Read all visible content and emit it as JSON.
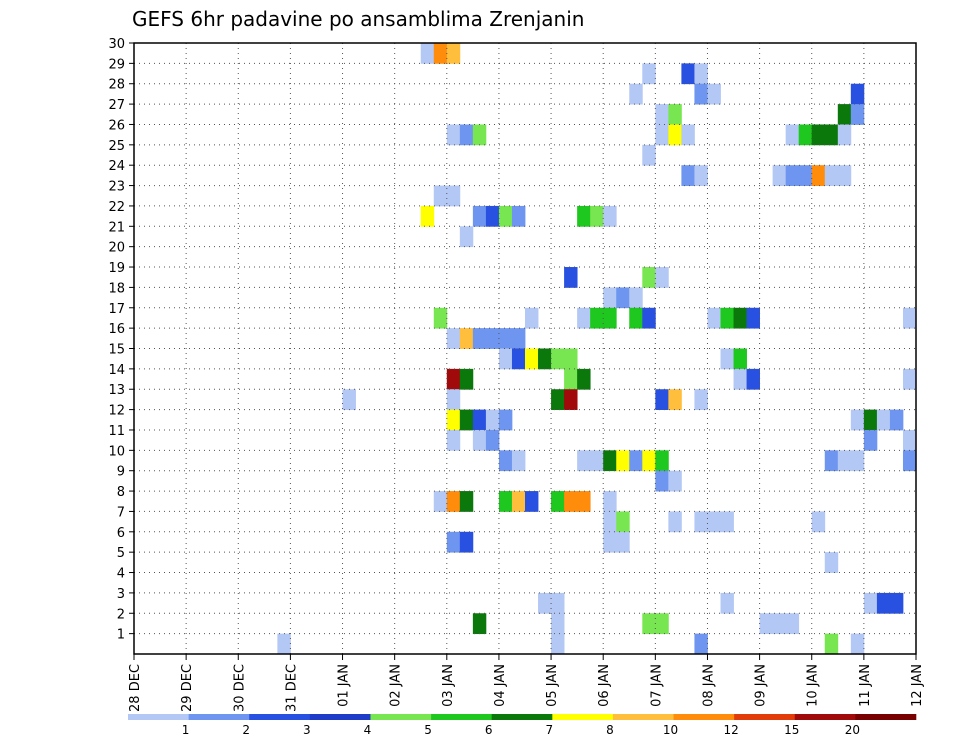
{
  "chart_data": {
    "type": "heatmap",
    "title": "GEFS 6hr padavine po ansamblima Zrenjanin",
    "xlabel": "",
    "ylabel": "",
    "x_ticks": [
      "28 DEC",
      "29 DEC",
      "30 DEC",
      "31 DEC",
      "01 JAN",
      "02 JAN",
      "03 JAN",
      "04 JAN",
      "05 JAN",
      "06 JAN",
      "07 JAN",
      "08 JAN",
      "09 JAN",
      "10 JAN",
      "11 JAN",
      "12 JAN"
    ],
    "y_ticks": [
      "1",
      "2",
      "3",
      "4",
      "5",
      "6",
      "7",
      "8",
      "9",
      "10",
      "11",
      "12",
      "13",
      "14",
      "15",
      "16",
      "17",
      "18",
      "19",
      "20",
      "21",
      "22",
      "23",
      "24",
      "25",
      "26",
      "27",
      "28",
      "29",
      "30"
    ],
    "ylim": [
      0,
      30
    ],
    "x_range_days": [
      0,
      15
    ],
    "time_step_hours": 6,
    "grid": "dotted",
    "legend_position": "bottom",
    "colorbar": {
      "levels": [
        "1",
        "2",
        "3",
        "4",
        "5",
        "6",
        "7",
        "8",
        "10",
        "12",
        "15",
        "20"
      ],
      "colors": [
        "#b4c8f5",
        "#6e96f0",
        "#2850e1",
        "#1e3cc8",
        "#78e650",
        "#1ec81e",
        "#0a780a",
        "#ffff00",
        "#ffbe3c",
        "#ff8c0a",
        "#e13c0a",
        "#a00a0a",
        "#780000"
      ]
    },
    "cells": [
      {
        "y": 30,
        "x": "2026-01-02T12",
        "v": 1
      },
      {
        "y": 30,
        "x": "2026-01-02T18",
        "v": 12
      },
      {
        "y": 30,
        "x": "2026-01-03T00",
        "v": 10
      },
      {
        "y": 29,
        "x": "2026-01-06T18",
        "v": 1
      },
      {
        "y": 29,
        "x": "2026-01-07T12",
        "v": 3
      },
      {
        "y": 29,
        "x": "2026-01-07T18",
        "v": 1
      },
      {
        "y": 28,
        "x": "2026-01-06T12",
        "v": 1
      },
      {
        "y": 28,
        "x": "2026-01-07T18",
        "v": 2
      },
      {
        "y": 28,
        "x": "2026-01-08T00",
        "v": 1
      },
      {
        "y": 28,
        "x": "2026-01-10T18",
        "v": 3
      },
      {
        "y": 27,
        "x": "2026-01-07T00",
        "v": 1
      },
      {
        "y": 27,
        "x": "2026-01-07T06",
        "v": 5
      },
      {
        "y": 27,
        "x": "2026-01-10T12",
        "v": 7
      },
      {
        "y": 27,
        "x": "2026-01-10T18",
        "v": 2
      },
      {
        "y": 26,
        "x": "2026-01-03T00",
        "v": 1
      },
      {
        "y": 26,
        "x": "2026-01-03T06",
        "v": 2
      },
      {
        "y": 26,
        "x": "2026-01-03T12",
        "v": 5
      },
      {
        "y": 26,
        "x": "2026-01-07T00",
        "v": 1
      },
      {
        "y": 26,
        "x": "2026-01-07T06",
        "v": 8
      },
      {
        "y": 26,
        "x": "2026-01-07T12",
        "v": 1
      },
      {
        "y": 26,
        "x": "2026-01-09T12",
        "v": 1
      },
      {
        "y": 26,
        "x": "2026-01-09T18",
        "v": 6
      },
      {
        "y": 26,
        "x": "2026-01-10T00",
        "v": 7
      },
      {
        "y": 26,
        "x": "2026-01-10T06",
        "v": 7
      },
      {
        "y": 26,
        "x": "2026-01-10T12",
        "v": 1
      },
      {
        "y": 25,
        "x": "2026-01-06T18",
        "v": 1
      },
      {
        "y": 24,
        "x": "2026-01-07T12",
        "v": 2
      },
      {
        "y": 24,
        "x": "2026-01-07T18",
        "v": 1
      },
      {
        "y": 24,
        "x": "2026-01-09T06",
        "v": 1
      },
      {
        "y": 24,
        "x": "2026-01-09T12",
        "v": 2
      },
      {
        "y": 24,
        "x": "2026-01-09T18",
        "v": 2
      },
      {
        "y": 24,
        "x": "2026-01-10T00",
        "v": 12
      },
      {
        "y": 24,
        "x": "2026-01-10T06",
        "v": 1
      },
      {
        "y": 24,
        "x": "2026-01-10T12",
        "v": 1
      },
      {
        "y": 23,
        "x": "2026-01-02T18",
        "v": 1
      },
      {
        "y": 23,
        "x": "2026-01-03T00",
        "v": 1
      },
      {
        "y": 22,
        "x": "2026-01-02T12",
        "v": 8
      },
      {
        "y": 22,
        "x": "2026-01-03T12",
        "v": 2
      },
      {
        "y": 22,
        "x": "2026-01-03T18",
        "v": 3
      },
      {
        "y": 22,
        "x": "2026-01-04T00",
        "v": 5
      },
      {
        "y": 22,
        "x": "2026-01-04T06",
        "v": 2
      },
      {
        "y": 22,
        "x": "2026-01-05T12",
        "v": 6
      },
      {
        "y": 22,
        "x": "2026-01-05T18",
        "v": 5
      },
      {
        "y": 22,
        "x": "2026-01-06T00",
        "v": 1
      },
      {
        "y": 21,
        "x": "2026-01-03T06",
        "v": 1
      },
      {
        "y": 19,
        "x": "2026-01-05T06",
        "v": 3
      },
      {
        "y": 19,
        "x": "2026-01-06T18",
        "v": 5
      },
      {
        "y": 19,
        "x": "2026-01-07T00",
        "v": 1
      },
      {
        "y": 18,
        "x": "2026-01-06T00",
        "v": 1
      },
      {
        "y": 18,
        "x": "2026-01-06T06",
        "v": 2
      },
      {
        "y": 18,
        "x": "2026-01-06T12",
        "v": 1
      },
      {
        "y": 17,
        "x": "2026-01-02T18",
        "v": 5
      },
      {
        "y": 17,
        "x": "2026-01-04T12",
        "v": 1
      },
      {
        "y": 17,
        "x": "2026-01-05T12",
        "v": 1
      },
      {
        "y": 17,
        "x": "2026-01-05T18",
        "v": 6
      },
      {
        "y": 17,
        "x": "2026-01-06T00",
        "v": 6
      },
      {
        "y": 17,
        "x": "2026-01-06T12",
        "v": 6
      },
      {
        "y": 17,
        "x": "2026-01-06T18",
        "v": 3
      },
      {
        "y": 17,
        "x": "2026-01-08T00",
        "v": 1
      },
      {
        "y": 17,
        "x": "2026-01-08T06",
        "v": 6
      },
      {
        "y": 17,
        "x": "2026-01-08T12",
        "v": 7
      },
      {
        "y": 17,
        "x": "2026-01-08T18",
        "v": 3
      },
      {
        "y": 17,
        "x": "2026-01-11T18",
        "v": 1
      },
      {
        "y": 16,
        "x": "2026-01-03T00",
        "v": 1
      },
      {
        "y": 16,
        "x": "2026-01-03T06",
        "v": 10
      },
      {
        "y": 16,
        "x": "2026-01-03T12",
        "v": 2
      },
      {
        "y": 16,
        "x": "2026-01-03T18",
        "v": 2
      },
      {
        "y": 16,
        "x": "2026-01-04T00",
        "v": 2
      },
      {
        "y": 16,
        "x": "2026-01-04T06",
        "v": 2
      },
      {
        "y": 15,
        "x": "2026-01-04T00",
        "v": 1
      },
      {
        "y": 15,
        "x": "2026-01-04T06",
        "v": 3
      },
      {
        "y": 15,
        "x": "2026-01-04T12",
        "v": 8
      },
      {
        "y": 15,
        "x": "2026-01-04T18",
        "v": 7
      },
      {
        "y": 15,
        "x": "2026-01-05T00",
        "v": 5
      },
      {
        "y": 15,
        "x": "2026-01-05T06",
        "v": 5
      },
      {
        "y": 15,
        "x": "2026-01-08T06",
        "v": 1
      },
      {
        "y": 15,
        "x": "2026-01-08T12",
        "v": 6
      },
      {
        "y": 14,
        "x": "2026-01-03T00",
        "v": 20
      },
      {
        "y": 14,
        "x": "2026-01-03T06",
        "v": 7
      },
      {
        "y": 14,
        "x": "2026-01-05T06",
        "v": 5
      },
      {
        "y": 14,
        "x": "2026-01-05T12",
        "v": 7
      },
      {
        "y": 14,
        "x": "2026-01-08T12",
        "v": 1
      },
      {
        "y": 14,
        "x": "2026-01-08T18",
        "v": 3
      },
      {
        "y": 14,
        "x": "2026-01-11T18",
        "v": 1
      },
      {
        "y": 13,
        "x": "2026-01-01T00",
        "v": 1
      },
      {
        "y": 13,
        "x": "2026-01-03T00",
        "v": 1
      },
      {
        "y": 13,
        "x": "2026-01-05T00",
        "v": 7
      },
      {
        "y": 13,
        "x": "2026-01-05T06",
        "v": 20
      },
      {
        "y": 13,
        "x": "2026-01-07T00",
        "v": 3
      },
      {
        "y": 13,
        "x": "2026-01-07T06",
        "v": 10
      },
      {
        "y": 13,
        "x": "2026-01-07T18",
        "v": 1
      },
      {
        "y": 12,
        "x": "2026-01-03T00",
        "v": 8
      },
      {
        "y": 12,
        "x": "2026-01-03T06",
        "v": 7
      },
      {
        "y": 12,
        "x": "2026-01-03T12",
        "v": 3
      },
      {
        "y": 12,
        "x": "2026-01-03T18",
        "v": 1
      },
      {
        "y": 12,
        "x": "2026-01-04T00",
        "v": 2
      },
      {
        "y": 12,
        "x": "2026-01-10T18",
        "v": 1
      },
      {
        "y": 12,
        "x": "2026-01-11T00",
        "v": 7
      },
      {
        "y": 12,
        "x": "2026-01-11T06",
        "v": 1
      },
      {
        "y": 12,
        "x": "2026-01-11T12",
        "v": 2
      },
      {
        "y": 11,
        "x": "2026-01-03T00",
        "v": 1
      },
      {
        "y": 11,
        "x": "2026-01-03T12",
        "v": 1
      },
      {
        "y": 11,
        "x": "2026-01-03T18",
        "v": 2
      },
      {
        "y": 11,
        "x": "2026-01-11T00",
        "v": 2
      },
      {
        "y": 11,
        "x": "2026-01-11T18",
        "v": 1
      },
      {
        "y": 10,
        "x": "2026-01-04T00",
        "v": 2
      },
      {
        "y": 10,
        "x": "2026-01-04T06",
        "v": 1
      },
      {
        "y": 10,
        "x": "2026-01-05T12",
        "v": 1
      },
      {
        "y": 10,
        "x": "2026-01-05T18",
        "v": 1
      },
      {
        "y": 10,
        "x": "2026-01-06T00",
        "v": 7
      },
      {
        "y": 10,
        "x": "2026-01-06T06",
        "v": 8
      },
      {
        "y": 10,
        "x": "2026-01-06T12",
        "v": 2
      },
      {
        "y": 10,
        "x": "2026-01-06T18",
        "v": 8
      },
      {
        "y": 10,
        "x": "2026-01-07T00",
        "v": 6
      },
      {
        "y": 10,
        "x": "2026-01-10T06",
        "v": 2
      },
      {
        "y": 10,
        "x": "2026-01-10T12",
        "v": 1
      },
      {
        "y": 10,
        "x": "2026-01-10T18",
        "v": 1
      },
      {
        "y": 10,
        "x": "2026-01-11T18",
        "v": 2
      },
      {
        "y": 9,
        "x": "2026-01-07T00",
        "v": 2
      },
      {
        "y": 9,
        "x": "2026-01-07T06",
        "v": 1
      },
      {
        "y": 8,
        "x": "2026-01-02T18",
        "v": 1
      },
      {
        "y": 8,
        "x": "2026-01-03T00",
        "v": 12
      },
      {
        "y": 8,
        "x": "2026-01-03T06",
        "v": 7
      },
      {
        "y": 8,
        "x": "2026-01-04T00",
        "v": 6
      },
      {
        "y": 8,
        "x": "2026-01-04T06",
        "v": 10
      },
      {
        "y": 8,
        "x": "2026-01-04T12",
        "v": 3
      },
      {
        "y": 8,
        "x": "2026-01-05T00",
        "v": 6
      },
      {
        "y": 8,
        "x": "2026-01-05T06",
        "v": 12
      },
      {
        "y": 8,
        "x": "2026-01-05T12",
        "v": 12
      },
      {
        "y": 8,
        "x": "2026-01-06T00",
        "v": 1
      },
      {
        "y": 7,
        "x": "2026-01-06T00",
        "v": 1
      },
      {
        "y": 7,
        "x": "2026-01-06T06",
        "v": 5
      },
      {
        "y": 7,
        "x": "2026-01-07T06",
        "v": 1
      },
      {
        "y": 7,
        "x": "2026-01-07T18",
        "v": 1
      },
      {
        "y": 7,
        "x": "2026-01-08T00",
        "v": 1
      },
      {
        "y": 7,
        "x": "2026-01-08T06",
        "v": 1
      },
      {
        "y": 7,
        "x": "2026-01-10T00",
        "v": 1
      },
      {
        "y": 6,
        "x": "2026-01-03T00",
        "v": 2
      },
      {
        "y": 6,
        "x": "2026-01-03T06",
        "v": 3
      },
      {
        "y": 6,
        "x": "2026-01-06T00",
        "v": 1
      },
      {
        "y": 6,
        "x": "2026-01-06T06",
        "v": 1
      },
      {
        "y": 5,
        "x": "2026-01-10T06",
        "v": 1
      },
      {
        "y": 3,
        "x": "2026-01-04T18",
        "v": 1
      },
      {
        "y": 3,
        "x": "2026-01-05T00",
        "v": 1
      },
      {
        "y": 3,
        "x": "2026-01-08T06",
        "v": 1
      },
      {
        "y": 3,
        "x": "2026-01-11T00",
        "v": 1
      },
      {
        "y": 3,
        "x": "2026-01-11T06",
        "v": 3
      },
      {
        "y": 3,
        "x": "2026-01-11T12",
        "v": 3
      },
      {
        "y": 2,
        "x": "2026-01-03T12",
        "v": 7
      },
      {
        "y": 2,
        "x": "2026-01-05T00",
        "v": 1
      },
      {
        "y": 2,
        "x": "2026-01-06T18",
        "v": 5
      },
      {
        "y": 2,
        "x": "2026-01-07T00",
        "v": 5
      },
      {
        "y": 2,
        "x": "2026-01-09T00",
        "v": 1
      },
      {
        "y": 2,
        "x": "2026-01-09T06",
        "v": 1
      },
      {
        "y": 2,
        "x": "2026-01-09T12",
        "v": 1
      },
      {
        "y": 1,
        "x": "2025-12-30T18",
        "v": 1
      },
      {
        "y": 1,
        "x": "2026-01-05T00",
        "v": 1
      },
      {
        "y": 1,
        "x": "2026-01-07T18",
        "v": 2
      },
      {
        "y": 1,
        "x": "2026-01-10T06",
        "v": 5
      },
      {
        "y": 1,
        "x": "2026-01-10T18",
        "v": 1
      }
    ]
  }
}
